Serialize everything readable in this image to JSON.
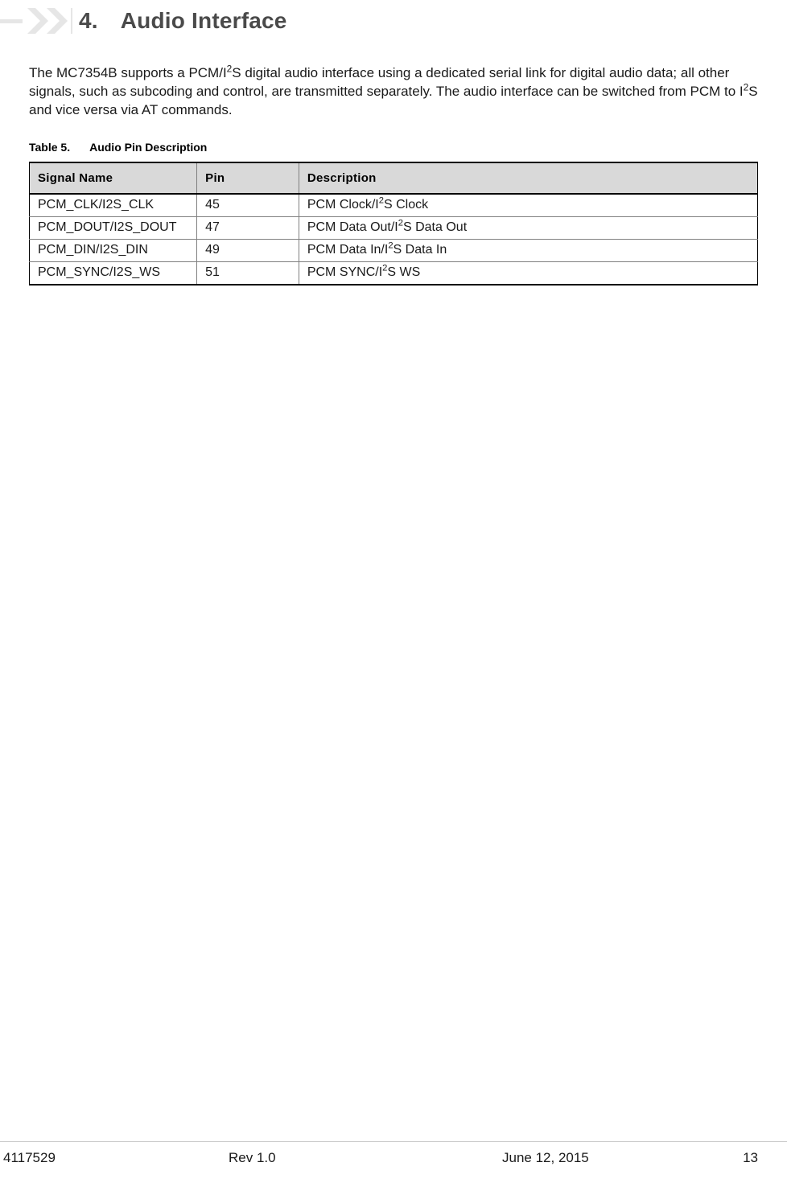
{
  "heading": {
    "number": "4.",
    "title": "Audio Interface",
    "color": "#4a4a4a",
    "fontsize": 28
  },
  "chevron_icon": {
    "color": "#e6e6e6"
  },
  "body": {
    "text_html": "The MC7354B supports a PCM/I<sup>2</sup>S digital audio interface using a dedicated serial link for digital audio data; all other signals, such as subcoding and control, are transmitted separately. The audio interface can be switched from PCM to I<sup>2</sup>S and vice versa via AT commands.",
    "fontsize": 17
  },
  "table": {
    "caption_number": "Table 5.",
    "caption_title": "Audio Pin Description",
    "header_bg": "#d9d9d9",
    "border_color": "#000000",
    "cell_border_color": "#808080",
    "columns": [
      "Signal Name",
      "Pin",
      "Description"
    ],
    "col_widths": [
      "23%",
      "14%",
      "63%"
    ],
    "rows": [
      {
        "signal": "PCM_CLK/I2S_CLK",
        "pin": "45",
        "desc_html": "PCM Clock/I<sup>2</sup>S Clock"
      },
      {
        "signal": "PCM_DOUT/I2S_DOUT",
        "pin": "47",
        "desc_html": "PCM Data Out/I<sup>2</sup>S Data Out"
      },
      {
        "signal": "PCM_DIN/I2S_DIN",
        "pin": "49",
        "desc_html": "PCM Data In/I<sup>2</sup>S Data In"
      },
      {
        "signal": "PCM_SYNC/I2S_WS",
        "pin": "51",
        "desc_html": "PCM SYNC/I<sup>2</sup>S WS"
      }
    ]
  },
  "footer": {
    "doc_number": "4117529",
    "revision": "Rev 1.0",
    "date": "June 12, 2015",
    "page": "13",
    "rule_color": "#cccccc"
  }
}
